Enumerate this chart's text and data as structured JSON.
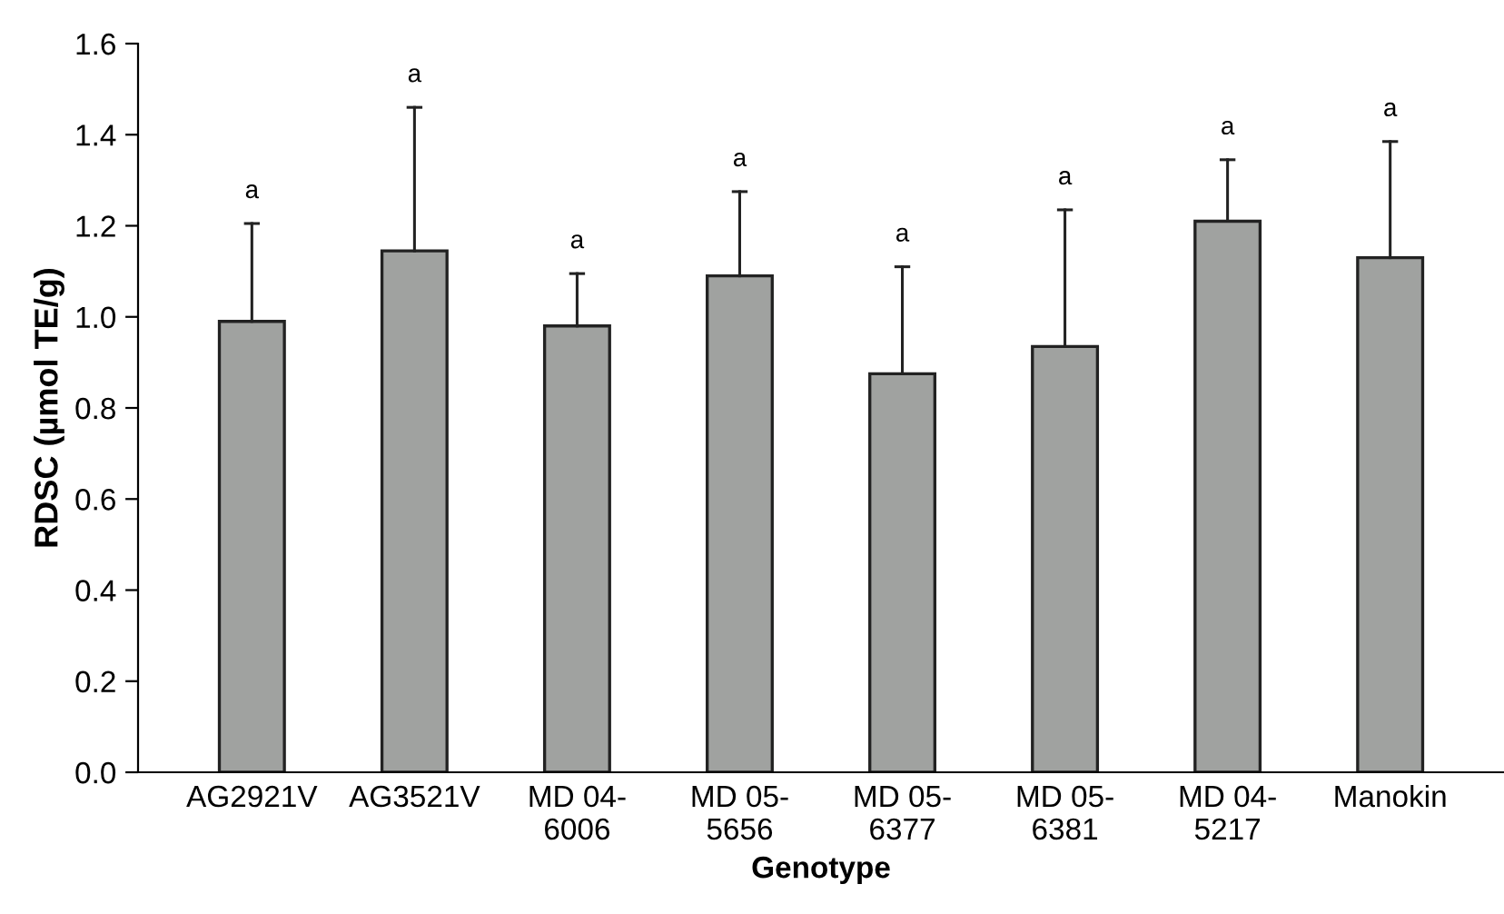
{
  "chart_data": {
    "type": "bar",
    "xlabel": "Genotype",
    "ylabel": "RDSC (µmol TE/g)",
    "categories": [
      "AG2921V",
      "AG3521V",
      "MD 04-\n6006",
      "MD 05-\n5656",
      "MD 05-\n6377",
      "MD 05-\n6381",
      "MD 04-\n5217",
      "Manokin"
    ],
    "values": [
      0.99,
      1.145,
      0.98,
      1.09,
      0.875,
      0.935,
      1.21,
      1.13
    ],
    "errors": [
      [
        0.99,
        1.205
      ],
      [
        1.145,
        1.46
      ],
      [
        0.98,
        1.095
      ],
      [
        1.09,
        1.275
      ],
      [
        0.875,
        1.11
      ],
      [
        0.935,
        1.235
      ],
      [
        1.21,
        1.345
      ],
      [
        1.13,
        1.385
      ]
    ],
    "color": "#a0a2a0",
    "ylim": [
      0,
      1.6
    ],
    "yticks": [
      {
        "value": 0,
        "label": "0.0"
      },
      0.2,
      0.4,
      0.6,
      0.8,
      {
        "value": 1,
        "label": "1.0"
      },
      1.2,
      1.4,
      1.6
    ],
    "annotations": [
      {
        "text": "a",
        "x": "AG2921V",
        "y": 1.205
      },
      {
        "text": "a",
        "x": "AG3521V",
        "y": 1.46
      },
      {
        "text": "a",
        "x": "MD 04-\n6006",
        "y": 1.095
      },
      {
        "text": "a",
        "x": "MD 05-\n5656",
        "y": 1.275
      },
      {
        "text": "a",
        "x": "MD 05-\n6377",
        "y": 1.11
      },
      {
        "text": "a",
        "x": "MD 05-\n6381",
        "y": 1.235
      },
      {
        "text": "a",
        "x": "MD 04-\n5217",
        "y": 1.345
      },
      {
        "text": "a",
        "x": "Manokin",
        "y": 1.385
      }
    ],
    "grid": false,
    "legend": false
  }
}
